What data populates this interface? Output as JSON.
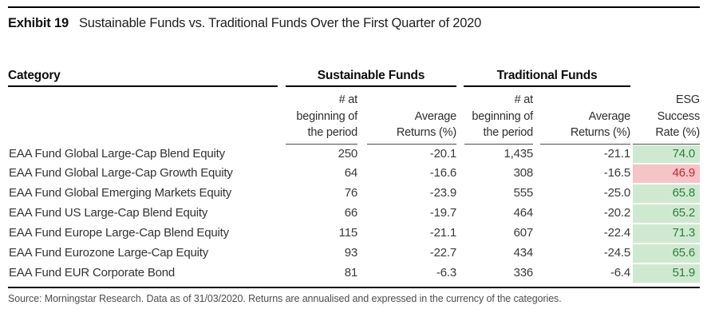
{
  "title": {
    "exhibit_label": "Exhibit 19",
    "text": "Sustainable Funds vs. Traditional Funds Over the First Quarter of 2020"
  },
  "table": {
    "category_header": "Category",
    "groups": [
      {
        "label": "Sustainable Funds"
      },
      {
        "label": "Traditional Funds"
      }
    ],
    "columns": {
      "count": "# at\nbeginning of\nthe period",
      "avg_return": "Average\nReturns (%)",
      "esg": "ESG\nSuccess\nRate (%)"
    },
    "rows": [
      {
        "category": "EAA Fund Global Large-Cap Blend Equity",
        "sus_count": "250",
        "sus_return": "-20.1",
        "trad_count": "1,435",
        "trad_return": "-21.1",
        "esg_rate": "74.0",
        "esg_status": "positive"
      },
      {
        "category": "EAA Fund Global Large-Cap Growth Equity",
        "sus_count": "64",
        "sus_return": "-16.6",
        "trad_count": "308",
        "trad_return": "-16.5",
        "esg_rate": "46.9",
        "esg_status": "negative"
      },
      {
        "category": "EAA Fund Global Emerging Markets Equity",
        "sus_count": "76",
        "sus_return": "-23.9",
        "trad_count": "555",
        "trad_return": "-25.0",
        "esg_rate": "65.8",
        "esg_status": "positive"
      },
      {
        "category": "EAA Fund US Large-Cap Blend Equity",
        "sus_count": "66",
        "sus_return": "-19.7",
        "trad_count": "464",
        "trad_return": "-20.2",
        "esg_rate": "65.2",
        "esg_status": "positive"
      },
      {
        "category": "EAA Fund Europe Large-Cap Blend Equity",
        "sus_count": "115",
        "sus_return": "-21.1",
        "trad_count": "607",
        "trad_return": "-22.4",
        "esg_rate": "71.3",
        "esg_status": "positive"
      },
      {
        "category": "EAA Fund Eurozone Large-Cap Equity",
        "sus_count": "93",
        "sus_return": "-22.7",
        "trad_count": "434",
        "trad_return": "-24.5",
        "esg_rate": "65.6",
        "esg_status": "positive"
      },
      {
        "category": "EAA Fund EUR Corporate Bond",
        "sus_count": "81",
        "sus_return": "-6.3",
        "trad_count": "336",
        "trad_return": "-6.4",
        "esg_rate": "51.9",
        "esg_status": "positive"
      }
    ]
  },
  "footer": {
    "source": "Source: Morningstar Research. Data as of 31/03/2020. Returns are annualised and expressed in the currency of the categories."
  },
  "colors": {
    "positive_bg": "#cfe9d1",
    "positive_text": "#2f7d3b",
    "negative_bg": "#f6c3c7",
    "negative_text": "#ba2a31"
  }
}
